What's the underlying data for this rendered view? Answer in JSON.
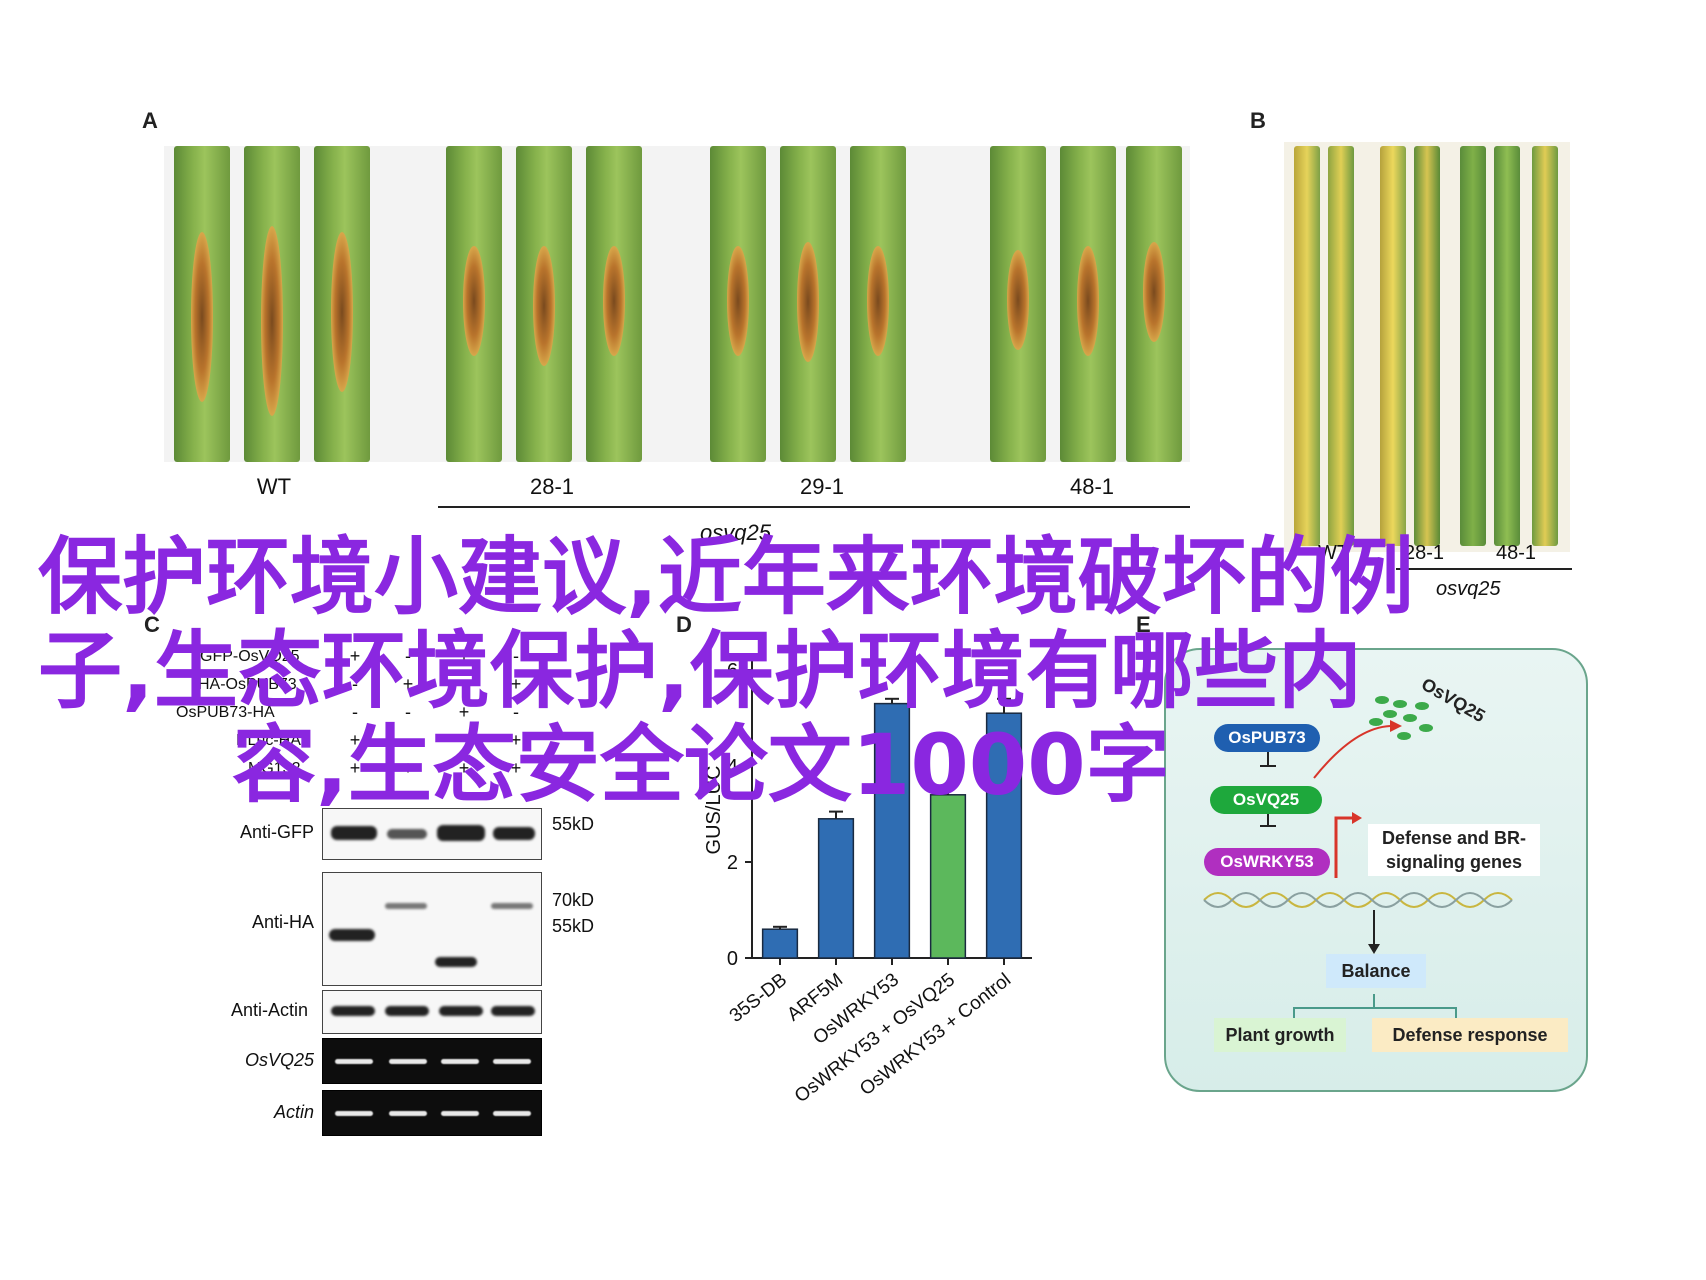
{
  "panels": {
    "A": {
      "label": "A",
      "genotypes": [
        "WT",
        "28-1",
        "29-1",
        "48-1"
      ],
      "mutant_group": "osvq25"
    },
    "B": {
      "label": "B",
      "genotypes": [
        "WT",
        "28-1",
        "48-1"
      ],
      "mutant_group": "osvq25"
    },
    "C": {
      "label": "C",
      "samples": [
        {
          "name": "GFP-OsVQ25",
          "marks": [
            "+",
            "-",
            "+",
            "-"
          ]
        },
        {
          "name": "HA-OsPUB73",
          "marks": [
            "-",
            "+",
            "-",
            "+"
          ]
        },
        {
          "name": "OsPUB73-HA",
          "marks": [
            "-",
            "-",
            "+",
            "-"
          ]
        },
        {
          "name": "NLuc-HA",
          "marks": [
            "+",
            "-",
            "-",
            "+"
          ]
        },
        {
          "name": "MG132",
          "marks": [
            "+",
            "+",
            "+",
            "+"
          ]
        }
      ],
      "rows": [
        {
          "label": "Anti-GFP",
          "italic": false,
          "markers": [
            "55kD"
          ]
        },
        {
          "label": "Anti-HA",
          "italic": false,
          "markers": [
            "70kD",
            "55kD"
          ]
        },
        {
          "label": "Anti-Actin",
          "italic": false,
          "markers": []
        },
        {
          "label": "OsVQ25",
          "italic": true,
          "markers": []
        },
        {
          "label": "Actin",
          "italic": true,
          "markers": []
        }
      ]
    },
    "D": {
      "label": "D"
    },
    "E": {
      "label": "E",
      "nodes": {
        "pub73": "OsPUB73",
        "vq25": "OsVQ25",
        "wrky53": "OsWRKY53",
        "degraded": "OsVQ25",
        "genes": "Defense and BR-signaling genes",
        "balance": "Balance",
        "growth": "Plant growth",
        "defense": "Defense response"
      }
    }
  },
  "chart_data": {
    "type": "bar",
    "categories": [
      "35S-DB",
      "ARF5M",
      "OsWRKY53",
      "OsWRKY53 + OsVQ25",
      "OsWRKY53 + Control"
    ],
    "values": [
      0.6,
      2.9,
      5.3,
      3.4,
      5.1
    ],
    "errors": [
      0.05,
      0.15,
      0.1,
      0.2,
      0.3
    ],
    "colors": [
      "#2f6db3",
      "#2f6db3",
      "#2f6db3",
      "#5cb85c",
      "#2f6db3"
    ],
    "ylabel": "GUS/LUC",
    "yticks": [
      0,
      2,
      4,
      6
    ],
    "ylim": [
      0,
      6
    ]
  },
  "overlay_title": {
    "line1": "保护环境小建议,近年来环境破坏的例",
    "line2": "子,生态环境保护,保护环境有哪些内",
    "line3": "容,生态安全论文1000字"
  }
}
